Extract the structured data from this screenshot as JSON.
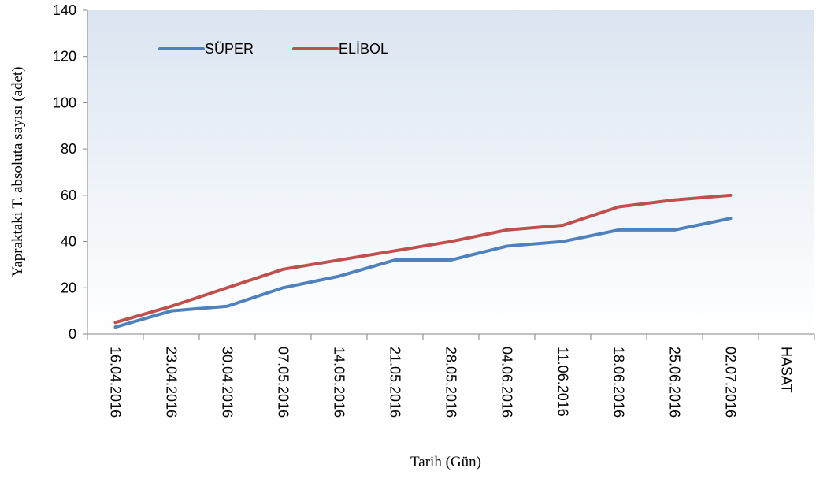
{
  "chart_data": {
    "type": "line",
    "xlabel": "Tarih (Gün)",
    "ylabel": "Yapraktaki T. absoluta  sayısı (adet)",
    "categories": [
      "16.04.2016",
      "23.04.2016",
      "30.04.2016",
      "07.05.2016",
      "14.05.2016",
      "21.05.2016",
      "28.05.2016",
      "04.06.2016",
      "11.06.2016",
      "18.06.2016",
      "25.06.2016",
      "02.07.2016",
      "HASAT"
    ],
    "series": [
      {
        "name": "SÜPER",
        "color": "#4f81bd",
        "values": [
          3,
          10,
          12,
          20,
          25,
          32,
          32,
          38,
          40,
          45,
          45,
          50,
          null
        ]
      },
      {
        "name": "ELİBOL",
        "color": "#c0504d",
        "values": [
          5,
          12,
          20,
          28,
          32,
          36,
          40,
          45,
          47,
          55,
          58,
          60,
          null
        ]
      }
    ],
    "ylim": [
      0,
      140
    ],
    "yticks": [
      0,
      20,
      40,
      60,
      80,
      100,
      120,
      140
    ],
    "legend": "top-left"
  }
}
